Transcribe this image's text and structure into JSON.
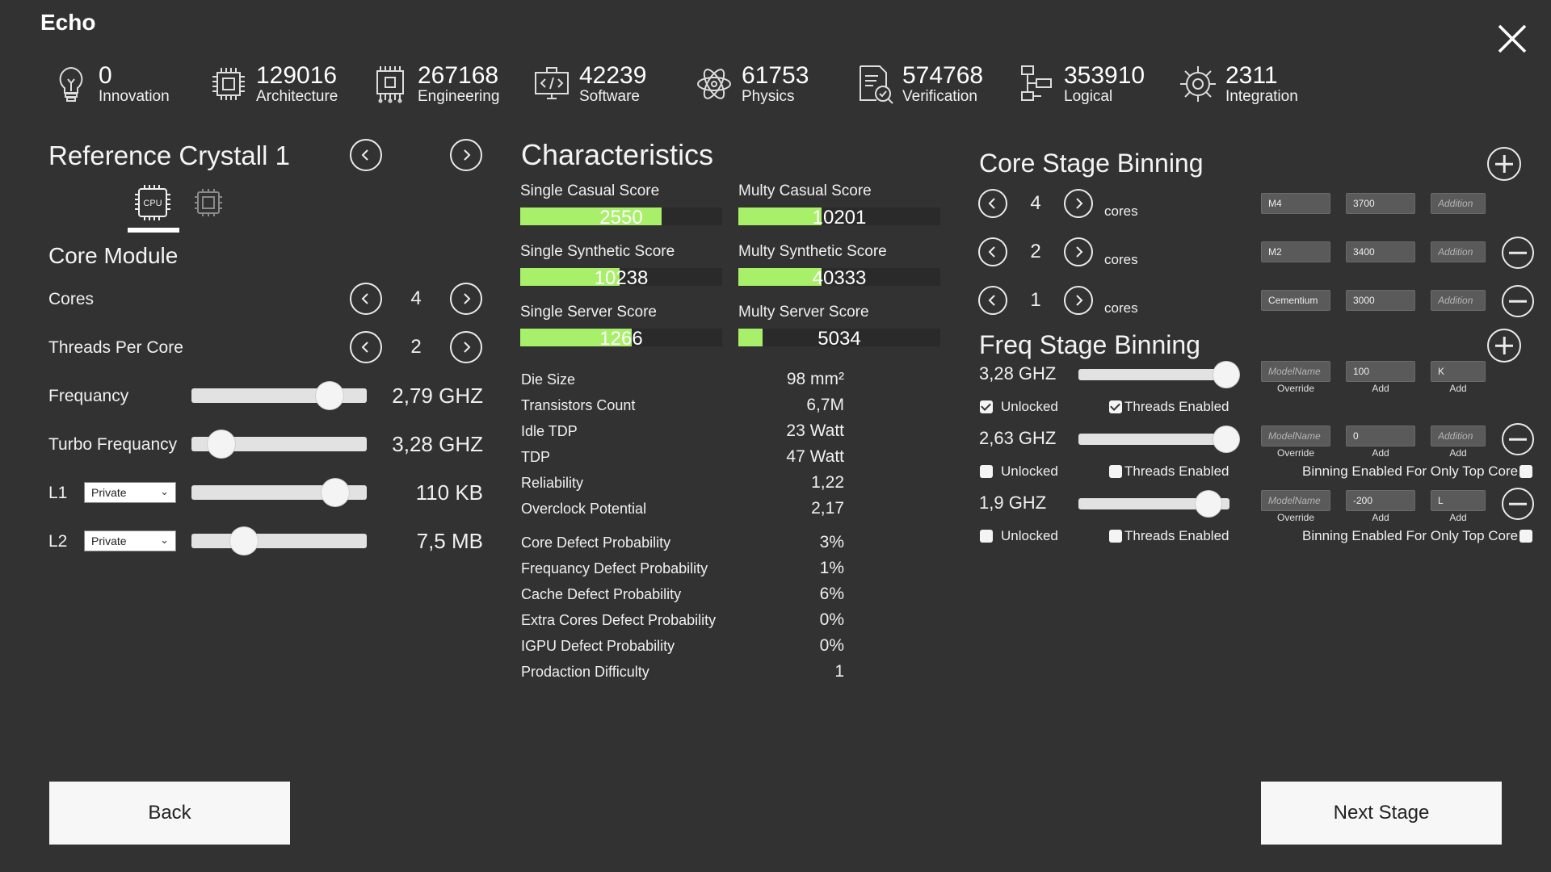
{
  "app": {
    "title": "Echo"
  },
  "resources": [
    {
      "icon": "lightbulb-icon",
      "value": "0",
      "label": "Innovation"
    },
    {
      "icon": "chip-icon",
      "value": "129016",
      "label": "Architecture"
    },
    {
      "icon": "circuit-board-icon",
      "value": "267168",
      "label": "Engineering"
    },
    {
      "icon": "computer-code-icon",
      "value": "42239",
      "label": "Software"
    },
    {
      "icon": "atom-icon",
      "value": "61753",
      "label": "Physics"
    },
    {
      "icon": "document-check-icon",
      "value": "574768",
      "label": "Verification"
    },
    {
      "icon": "flowchart-icon",
      "value": "353910",
      "label": "Logical"
    },
    {
      "icon": "gear-circuit-icon",
      "value": "2311",
      "label": "Integration"
    }
  ],
  "left": {
    "reference_title": "Reference Crystall 1",
    "cpu_tab_label": "CPU",
    "module_title": "Core Module",
    "cores": {
      "label": "Cores",
      "value": "4"
    },
    "threads": {
      "label": "Threads Per Core",
      "value": "2"
    },
    "frequency": {
      "label": "Frequancy",
      "value": "2,79 GHZ",
      "level": 0.79
    },
    "turbo": {
      "label": "Turbo Frequancy",
      "value": "3,28 GHZ",
      "level": 0.17
    },
    "l1": {
      "label": "L1",
      "mode": "Private",
      "value": "110 KB",
      "level": 0.82
    },
    "l2": {
      "label": "L2",
      "mode": "Private",
      "value": "7,5 MB",
      "level": 0.3
    }
  },
  "characteristics": {
    "title": "Characteristics",
    "scores": [
      {
        "label": "Single Casual Score",
        "value": "2550",
        "fill": 0.7
      },
      {
        "label": "Multy Casual Score",
        "value": "10201",
        "fill": 0.41
      },
      {
        "label": "Single Synthetic Score",
        "value": "10238",
        "fill": 0.49
      },
      {
        "label": "Multy Synthetic Score",
        "value": "40333",
        "fill": 0.41
      },
      {
        "label": "Single Server Score",
        "value": "1266",
        "fill": 0.55
      },
      {
        "label": "Multy Server Score",
        "value": "5034",
        "fill": 0.12
      }
    ],
    "stats": [
      {
        "label": "Die Size",
        "value": "98 mm²"
      },
      {
        "label": "Transistors Count",
        "value": "6,7M"
      },
      {
        "label": "Idle TDP",
        "value": "23 Watt"
      },
      {
        "label": "TDP",
        "value": "47 Watt"
      },
      {
        "label": "Reliability",
        "value": "1,22"
      },
      {
        "label": "Overclock Potential",
        "value": "2,17"
      }
    ],
    "defects": [
      {
        "label": "Core Defect Probability",
        "value": "3%"
      },
      {
        "label": "Frequancy Defect Probability",
        "value": "1%"
      },
      {
        "label": "Cache Defect Probability",
        "value": "6%"
      },
      {
        "label": "Extra Cores Defect Probability",
        "value": "0%"
      },
      {
        "label": "IGPU Defect Probability",
        "value": "0%"
      },
      {
        "label": "Prodaction Difficulty",
        "value": "1"
      }
    ]
  },
  "core_binning": {
    "title": "Core Stage Binning",
    "unit": "cores",
    "rows": [
      {
        "count": "4",
        "name": "M4",
        "value": "3700",
        "addition_placeholder": "Addition"
      },
      {
        "count": "2",
        "name": "M2",
        "value": "3400",
        "addition_placeholder": "Addition"
      },
      {
        "count": "1",
        "name": "Cementium",
        "value": "3000",
        "addition_placeholder": "Addition"
      }
    ]
  },
  "freq_binning": {
    "title": "Freq Stage Binning",
    "unlocked_label": "Unlocked",
    "threads_label": "Threads Enabled",
    "top_core_label": "Binning Enabled For Only Top Core",
    "model_placeholder": "ModelName",
    "addition_placeholder": "Addition",
    "caption_override": "Override",
    "caption_add": "Add",
    "rows": [
      {
        "freq": "3,28 GHZ",
        "level": 1.0,
        "unlocked": true,
        "threads": true,
        "add": "100",
        "add2": "K"
      },
      {
        "freq": "2,63 GHZ",
        "level": 1.0,
        "unlocked": false,
        "threads": false,
        "add": "0",
        "add2": ""
      },
      {
        "freq": "1,9 GHZ",
        "level": 0.86,
        "unlocked": false,
        "threads": false,
        "add": "-200",
        "add2": "L"
      }
    ]
  },
  "buttons": {
    "back": "Back",
    "next": "Next Stage"
  }
}
